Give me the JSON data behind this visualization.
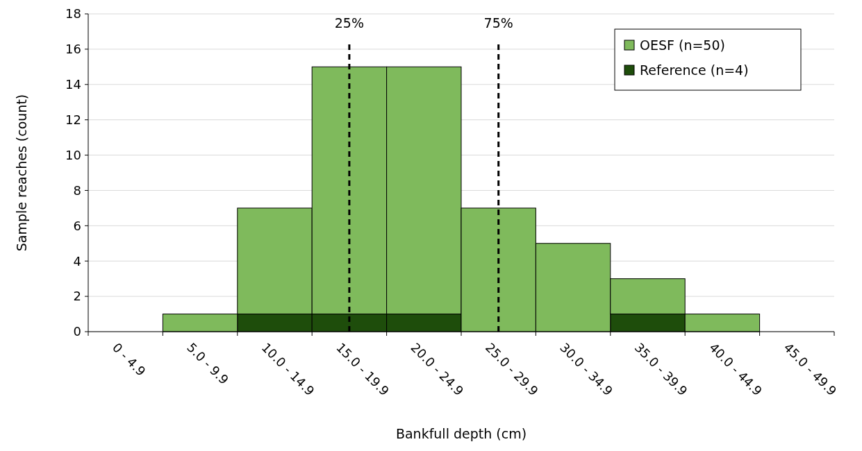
{
  "chart_data": {
    "type": "bar",
    "xlabel": "Bankfull depth (cm)",
    "ylabel": "Sample reaches (count)",
    "categories": [
      "0 - 4.9",
      "5.0 - 9.9",
      "10.0 - 14.9",
      "15.0 - 19.9",
      "20.0 - 24.9",
      "25.0 - 29.9",
      "30.0 - 34.9",
      "35.0 - 39.9",
      "40.0 - 44.9",
      "45.0 - 49.9"
    ],
    "stacked": true,
    "series": [
      {
        "name": "Reference (n=4)",
        "color": "#1e4d0b",
        "values": [
          0,
          0,
          1,
          1,
          1,
          0,
          0,
          1,
          0,
          0
        ]
      },
      {
        "name": "OESF (n=50)",
        "color": "#7fba5c",
        "values": [
          0,
          1,
          6,
          14,
          14,
          7,
          5,
          2,
          1,
          0
        ]
      }
    ],
    "ylim": [
      0,
      18
    ],
    "yticks": [
      0,
      2,
      4,
      6,
      8,
      10,
      12,
      14,
      16,
      18
    ],
    "grid": "y",
    "legend": "top right",
    "ref_lines": [
      {
        "axis": "x",
        "value": "15.0 - 19.9",
        "label": "25%",
        "color": "#000000",
        "line_style": "dashed"
      },
      {
        "axis": "x",
        "value": "25.0 - 29.9",
        "label": "75%",
        "color": "#000000",
        "line_style": "dashed"
      }
    ]
  }
}
